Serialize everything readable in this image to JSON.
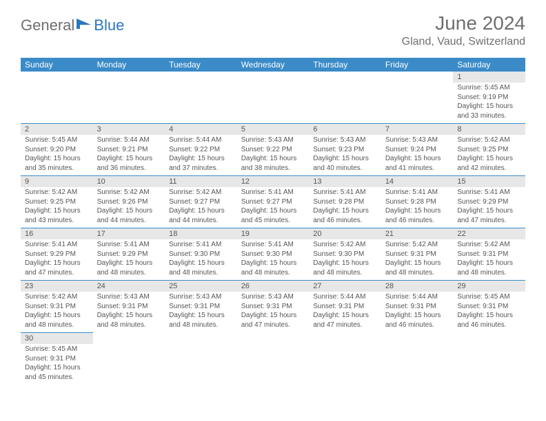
{
  "logo": {
    "text_gray": "General",
    "text_blue": "Blue"
  },
  "title": "June 2024",
  "location": "Gland, Vaud, Switzerland",
  "colors": {
    "header_bg": "#3b8bc8",
    "header_fg": "#ffffff",
    "daynum_bg": "#e7e7e7",
    "text": "#555555",
    "rule": "#3b8bc8"
  },
  "day_headers": [
    "Sunday",
    "Monday",
    "Tuesday",
    "Wednesday",
    "Thursday",
    "Friday",
    "Saturday"
  ],
  "weeks": [
    {
      "nums": [
        "",
        "",
        "",
        "",
        "",
        "",
        "1"
      ],
      "cells": [
        "",
        "",
        "",
        "",
        "",
        "",
        "Sunrise: 5:45 AM|Sunset: 9:19 PM|Daylight: 15 hours and 33 minutes."
      ]
    },
    {
      "nums": [
        "2",
        "3",
        "4",
        "5",
        "6",
        "7",
        "8"
      ],
      "cells": [
        "Sunrise: 5:45 AM|Sunset: 9:20 PM|Daylight: 15 hours and 35 minutes.",
        "Sunrise: 5:44 AM|Sunset: 9:21 PM|Daylight: 15 hours and 36 minutes.",
        "Sunrise: 5:44 AM|Sunset: 9:22 PM|Daylight: 15 hours and 37 minutes.",
        "Sunrise: 5:43 AM|Sunset: 9:22 PM|Daylight: 15 hours and 38 minutes.",
        "Sunrise: 5:43 AM|Sunset: 9:23 PM|Daylight: 15 hours and 40 minutes.",
        "Sunrise: 5:43 AM|Sunset: 9:24 PM|Daylight: 15 hours and 41 minutes.",
        "Sunrise: 5:42 AM|Sunset: 9:25 PM|Daylight: 15 hours and 42 minutes."
      ]
    },
    {
      "nums": [
        "9",
        "10",
        "11",
        "12",
        "13",
        "14",
        "15"
      ],
      "cells": [
        "Sunrise: 5:42 AM|Sunset: 9:25 PM|Daylight: 15 hours and 43 minutes.",
        "Sunrise: 5:42 AM|Sunset: 9:26 PM|Daylight: 15 hours and 44 minutes.",
        "Sunrise: 5:42 AM|Sunset: 9:27 PM|Daylight: 15 hours and 44 minutes.",
        "Sunrise: 5:41 AM|Sunset: 9:27 PM|Daylight: 15 hours and 45 minutes.",
        "Sunrise: 5:41 AM|Sunset: 9:28 PM|Daylight: 15 hours and 46 minutes.",
        "Sunrise: 5:41 AM|Sunset: 9:28 PM|Daylight: 15 hours and 46 minutes.",
        "Sunrise: 5:41 AM|Sunset: 9:29 PM|Daylight: 15 hours and 47 minutes."
      ]
    },
    {
      "nums": [
        "16",
        "17",
        "18",
        "19",
        "20",
        "21",
        "22"
      ],
      "cells": [
        "Sunrise: 5:41 AM|Sunset: 9:29 PM|Daylight: 15 hours and 47 minutes.",
        "Sunrise: 5:41 AM|Sunset: 9:29 PM|Daylight: 15 hours and 48 minutes.",
        "Sunrise: 5:41 AM|Sunset: 9:30 PM|Daylight: 15 hours and 48 minutes.",
        "Sunrise: 5:41 AM|Sunset: 9:30 PM|Daylight: 15 hours and 48 minutes.",
        "Sunrise: 5:42 AM|Sunset: 9:30 PM|Daylight: 15 hours and 48 minutes.",
        "Sunrise: 5:42 AM|Sunset: 9:31 PM|Daylight: 15 hours and 48 minutes.",
        "Sunrise: 5:42 AM|Sunset: 9:31 PM|Daylight: 15 hours and 48 minutes."
      ]
    },
    {
      "nums": [
        "23",
        "24",
        "25",
        "26",
        "27",
        "28",
        "29"
      ],
      "cells": [
        "Sunrise: 5:42 AM|Sunset: 9:31 PM|Daylight: 15 hours and 48 minutes.",
        "Sunrise: 5:43 AM|Sunset: 9:31 PM|Daylight: 15 hours and 48 minutes.",
        "Sunrise: 5:43 AM|Sunset: 9:31 PM|Daylight: 15 hours and 48 minutes.",
        "Sunrise: 5:43 AM|Sunset: 9:31 PM|Daylight: 15 hours and 47 minutes.",
        "Sunrise: 5:44 AM|Sunset: 9:31 PM|Daylight: 15 hours and 47 minutes.",
        "Sunrise: 5:44 AM|Sunset: 9:31 PM|Daylight: 15 hours and 46 minutes.",
        "Sunrise: 5:45 AM|Sunset: 9:31 PM|Daylight: 15 hours and 46 minutes."
      ]
    },
    {
      "nums": [
        "30",
        "",
        "",
        "",
        "",
        "",
        ""
      ],
      "cells": [
        "Sunrise: 5:45 AM|Sunset: 9:31 PM|Daylight: 15 hours and 45 minutes.",
        "",
        "",
        "",
        "",
        "",
        ""
      ]
    }
  ]
}
